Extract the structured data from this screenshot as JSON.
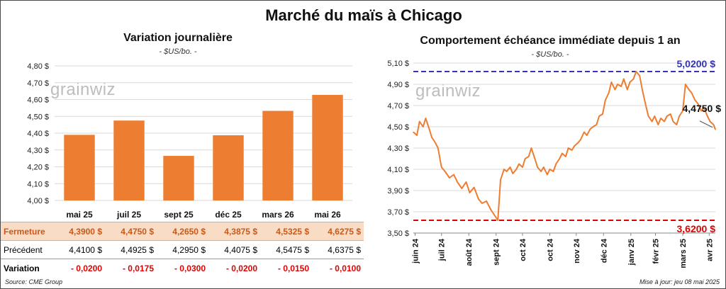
{
  "title": "Marché du maïs à Chicago",
  "watermark": "grainwiz",
  "colors": {
    "bar": "#ed7d31",
    "line": "#ed7d31",
    "high": "#3333bb",
    "low": "#e00000",
    "grid": "#d9d9d9"
  },
  "chart_data": [
    {
      "type": "bar",
      "title": "Variation journalière",
      "subtitle": "- $US/bo. -",
      "categories": [
        "mai 25",
        "juil 25",
        "sept 25",
        "déc 25",
        "mars 26",
        "mai 26"
      ],
      "values": [
        4.39,
        4.475,
        4.265,
        4.3875,
        4.5325,
        4.6275
      ],
      "ylim": [
        4.0,
        4.8
      ],
      "yticks": [
        "4,00 $",
        "4,10 $",
        "4,20 $",
        "4,30 $",
        "4,40 $",
        "4,50 $",
        "4,60 $",
        "4,70 $",
        "4,80 $"
      ],
      "grid": true
    },
    {
      "type": "line",
      "title": "Comportement échéance immédiate depuis 1 an",
      "subtitle": "- $US/bo. -",
      "xlim": [
        "2024-05-30",
        "2025-05-08"
      ],
      "ylim": [
        3.5,
        5.1
      ],
      "yticks": [
        "3,50 $",
        "3,70 $",
        "3,90 $",
        "4,10 $",
        "4,30 $",
        "4,50 $",
        "4,70 $",
        "4,90 $",
        "5,10 $"
      ],
      "xticks": [
        {
          "date": "2024-06-01",
          "label": "juin 24"
        },
        {
          "date": "2024-07-01",
          "label": "juil 24"
        },
        {
          "date": "2024-08-01",
          "label": "août 24"
        },
        {
          "date": "2024-09-01",
          "label": "sept 24"
        },
        {
          "date": "2024-10-01",
          "label": "oct 24"
        },
        {
          "date": "2024-11-01",
          "label": "oct 24"
        },
        {
          "date": "2024-12-01",
          "label": "nov 24"
        },
        {
          "date": "2025-01-01",
          "label": "déc 24"
        },
        {
          "date": "2025-02-01",
          "label": "janv 25"
        },
        {
          "date": "2025-03-01",
          "label": "févr 25"
        },
        {
          "date": "2025-04-01",
          "label": "mars 25"
        },
        {
          "date": "2025-05-01",
          "label": "avr 25"
        }
      ],
      "points": [
        [
          "2024-05-30",
          4.45
        ],
        [
          "2024-06-03",
          4.42
        ],
        [
          "2024-06-06",
          4.55
        ],
        [
          "2024-06-10",
          4.5
        ],
        [
          "2024-06-13",
          4.58
        ],
        [
          "2024-06-17",
          4.48
        ],
        [
          "2024-06-20",
          4.4
        ],
        [
          "2024-06-24",
          4.35
        ],
        [
          "2024-06-27",
          4.3
        ],
        [
          "2024-07-01",
          4.12
        ],
        [
          "2024-07-05",
          4.08
        ],
        [
          "2024-07-10",
          4.02
        ],
        [
          "2024-07-15",
          4.05
        ],
        [
          "2024-07-19",
          3.98
        ],
        [
          "2024-07-24",
          3.92
        ],
        [
          "2024-07-29",
          3.98
        ],
        [
          "2024-08-02",
          3.88
        ],
        [
          "2024-08-07",
          3.93
        ],
        [
          "2024-08-12",
          3.82
        ],
        [
          "2024-08-16",
          3.78
        ],
        [
          "2024-08-21",
          3.8
        ],
        [
          "2024-08-26",
          3.72
        ],
        [
          "2024-08-30",
          3.67
        ],
        [
          "2024-09-03",
          3.62
        ],
        [
          "2024-09-06",
          4.0
        ],
        [
          "2024-09-10",
          4.1
        ],
        [
          "2024-09-13",
          4.08
        ],
        [
          "2024-09-17",
          4.12
        ],
        [
          "2024-09-20",
          4.06
        ],
        [
          "2024-09-24",
          4.1
        ],
        [
          "2024-09-27",
          4.15
        ],
        [
          "2024-10-01",
          4.12
        ],
        [
          "2024-10-04",
          4.2
        ],
        [
          "2024-10-08",
          4.22
        ],
        [
          "2024-10-11",
          4.3
        ],
        [
          "2024-10-15",
          4.2
        ],
        [
          "2024-10-18",
          4.12
        ],
        [
          "2024-10-22",
          4.08
        ],
        [
          "2024-10-25",
          4.12
        ],
        [
          "2024-10-29",
          4.05
        ],
        [
          "2024-11-01",
          4.1
        ],
        [
          "2024-11-05",
          4.08
        ],
        [
          "2024-11-08",
          4.15
        ],
        [
          "2024-11-12",
          4.2
        ],
        [
          "2024-11-15",
          4.25
        ],
        [
          "2024-11-19",
          4.22
        ],
        [
          "2024-11-22",
          4.3
        ],
        [
          "2024-11-26",
          4.28
        ],
        [
          "2024-11-29",
          4.32
        ],
        [
          "2024-12-03",
          4.35
        ],
        [
          "2024-12-06",
          4.38
        ],
        [
          "2024-12-10",
          4.45
        ],
        [
          "2024-12-13",
          4.42
        ],
        [
          "2024-12-17",
          4.48
        ],
        [
          "2024-12-20",
          4.5
        ],
        [
          "2024-12-24",
          4.52
        ],
        [
          "2024-12-27",
          4.6
        ],
        [
          "2024-12-31",
          4.62
        ],
        [
          "2025-01-03",
          4.75
        ],
        [
          "2025-01-07",
          4.82
        ],
        [
          "2025-01-10",
          4.92
        ],
        [
          "2025-01-14",
          4.85
        ],
        [
          "2025-01-17",
          4.9
        ],
        [
          "2025-01-21",
          4.88
        ],
        [
          "2025-01-24",
          4.95
        ],
        [
          "2025-01-28",
          4.85
        ],
        [
          "2025-01-31",
          4.92
        ],
        [
          "2025-02-04",
          4.95
        ],
        [
          "2025-02-07",
          5.02
        ],
        [
          "2025-02-11",
          4.98
        ],
        [
          "2025-02-14",
          4.85
        ],
        [
          "2025-02-18",
          4.7
        ],
        [
          "2025-02-21",
          4.6
        ],
        [
          "2025-02-25",
          4.55
        ],
        [
          "2025-02-28",
          4.6
        ],
        [
          "2025-03-04",
          4.52
        ],
        [
          "2025-03-07",
          4.58
        ],
        [
          "2025-03-11",
          4.55
        ],
        [
          "2025-03-14",
          4.6
        ],
        [
          "2025-03-18",
          4.62
        ],
        [
          "2025-03-21",
          4.55
        ],
        [
          "2025-03-25",
          4.52
        ],
        [
          "2025-03-28",
          4.6
        ],
        [
          "2025-04-01",
          4.65
        ],
        [
          "2025-04-04",
          4.9
        ],
        [
          "2025-04-08",
          4.85
        ],
        [
          "2025-04-11",
          4.82
        ],
        [
          "2025-04-15",
          4.75
        ],
        [
          "2025-04-18",
          4.72
        ],
        [
          "2025-04-22",
          4.65
        ],
        [
          "2025-04-25",
          4.68
        ],
        [
          "2025-04-29",
          4.6
        ],
        [
          "2025-05-02",
          4.55
        ],
        [
          "2025-05-06",
          4.52
        ],
        [
          "2025-05-08",
          4.475
        ]
      ],
      "high": {
        "value": 5.02,
        "label": "5,0200 $"
      },
      "low": {
        "value": 3.62,
        "label": "3,6200 $"
      },
      "last": {
        "value": 4.475,
        "label": "4,4750 $"
      }
    }
  ],
  "table": {
    "rows": [
      {
        "label": "Fermeture",
        "values": [
          "4,3900  $",
          "4,4750  $",
          "4,2650  $",
          "4,3875  $",
          "4,5325  $",
          "4,6275  $"
        ]
      },
      {
        "label": "Précédent",
        "values": [
          "4,4100  $",
          "4,4925  $",
          "4,2950  $",
          "4,4075  $",
          "4,5475  $",
          "4,6375  $"
        ]
      },
      {
        "label": "Variation",
        "values": [
          "- 0,0200",
          "- 0,0175",
          "- 0,0300",
          "- 0,0200",
          "- 0,0150",
          "- 0,0100"
        ]
      }
    ]
  },
  "footer": {
    "source": "Source: CME Group",
    "updated": "Mise à jour: jeu 08 mai 2025"
  }
}
